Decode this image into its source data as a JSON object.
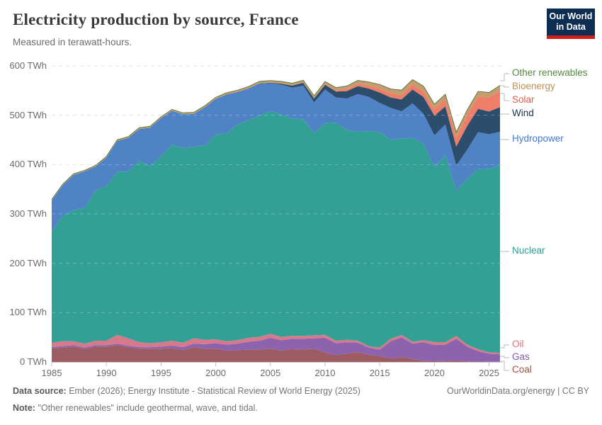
{
  "header": {
    "title": "Electricity production by source, France",
    "subtitle": "Measured in terawatt-hours."
  },
  "logo": {
    "line1": "Our World",
    "line2": "in Data"
  },
  "footer": {
    "source_label": "Data source:",
    "source_text": " Ember (2026); Energy Institute - Statistical Review of World Energy (2025)",
    "credit": "OurWorldinData.org/energy | CC BY",
    "note_label": "Note:",
    "note_text": " \"Other renewables\" include geothermal, wave, and tidal."
  },
  "chart_data": {
    "type": "area",
    "stacked": true,
    "title": "Electricity production by source, France",
    "subtitle": "Measured in terawatt-hours.",
    "xlabel": "",
    "ylabel": "",
    "ylim": [
      0,
      600
    ],
    "y_ticks": [
      0,
      100,
      200,
      300,
      400,
      500,
      600
    ],
    "y_tick_suffix": " TWh",
    "x_ticks": [
      1985,
      1990,
      1995,
      2000,
      2005,
      2010,
      2015,
      2020,
      2025
    ],
    "grid": "dashed-horizontal",
    "legend_position": "right",
    "x": [
      1985,
      1986,
      1987,
      1988,
      1989,
      1990,
      1991,
      1992,
      1993,
      1994,
      1995,
      1996,
      1997,
      1998,
      1999,
      2000,
      2001,
      2002,
      2003,
      2004,
      2005,
      2006,
      2007,
      2008,
      2009,
      2010,
      2011,
      2012,
      2013,
      2014,
      2015,
      2016,
      2017,
      2018,
      2019,
      2020,
      2021,
      2022,
      2023,
      2024,
      2025,
      2026
    ],
    "series": [
      {
        "name": "Coal",
        "color": "#9c5c62",
        "label_color": "#a84b3f",
        "values": [
          27,
          29,
          31,
          26,
          31,
          31,
          34,
          30,
          27,
          27,
          27,
          28,
          24,
          30,
          27,
          27,
          23,
          24,
          25,
          25,
          27,
          23,
          26,
          25,
          27,
          19,
          14,
          17,
          20,
          15,
          12,
          7,
          10,
          6,
          2,
          1.4,
          2,
          3,
          1,
          0.8,
          0.5,
          0.5
        ]
      },
      {
        "name": "Gas",
        "color": "#8d63ae",
        "label_color": "#8458a8",
        "values": [
          3,
          3,
          3,
          3,
          3,
          3,
          3,
          3,
          3,
          3,
          4,
          5,
          6,
          7,
          9,
          11,
          12,
          13,
          16,
          18,
          22,
          21,
          21,
          22,
          21,
          30,
          24,
          23,
          19,
          14,
          13,
          35,
          40,
          31,
          38,
          33,
          33,
          44,
          30,
          21,
          16,
          15
        ]
      },
      {
        "name": "Oil",
        "color": "#d6798a",
        "label_color": "#d8707d",
        "values": [
          9,
          10,
          8,
          8,
          9,
          9,
          18,
          15,
          10,
          8,
          9,
          10,
          9,
          11,
          9,
          8,
          7,
          7,
          8,
          8,
          8,
          7,
          6,
          6,
          6,
          6,
          5,
          5,
          4,
          3,
          4,
          5,
          5,
          4,
          4,
          6,
          5,
          6,
          4,
          4,
          3,
          3
        ]
      },
      {
        "name": "Nuclear",
        "color": "#33a096",
        "label_color": "#2d9c91",
        "values": [
          224,
          254,
          266,
          275,
          304,
          314,
          331,
          338,
          368,
          359,
          377,
          397,
          395,
          388,
          394,
          415,
          421,
          437,
          441,
          448,
          452,
          450,
          440,
          439,
          410,
          429,
          442,
          425,
          424,
          436,
          437,
          403,
          398,
          413,
          399,
          354,
          379,
          295,
          336,
          365,
          372,
          380
        ]
      },
      {
        "name": "Hydropower",
        "color": "#5082c6",
        "label_color": "#4378c9",
        "values": [
          64,
          62,
          71,
          74,
          49,
          57,
          62,
          68,
          64,
          78,
          77,
          69,
          68,
          67,
          77,
          72,
          79,
          66,
          64,
          65,
          56,
          61,
          63,
          68,
          62,
          68,
          51,
          64,
          76,
          69,
          59,
          65,
          55,
          70,
          60,
          65,
          62,
          50,
          59,
          75,
          70,
          68
        ]
      },
      {
        "name": "Wind",
        "color": "#2d4d6d",
        "label_color": "#16304f",
        "values": [
          0,
          0,
          0,
          0,
          0,
          0,
          0,
          0,
          0,
          0,
          0,
          0,
          0,
          0,
          0,
          0.1,
          0.1,
          0.3,
          0.4,
          0.6,
          1,
          2,
          4,
          5.7,
          7.9,
          9.9,
          12,
          14.9,
          16,
          17,
          21,
          21,
          24,
          28,
          34,
          39.7,
          36.8,
          38.5,
          48.6,
          47,
          46,
          50
        ]
      },
      {
        "name": "Solar",
        "color": "#ef7e69",
        "label_color": "#e05c49",
        "values": [
          0,
          0,
          0,
          0,
          0,
          0,
          0,
          0,
          0,
          0,
          0,
          0,
          0,
          0,
          0,
          0,
          0,
          0,
          0,
          0,
          0,
          0,
          0,
          0.1,
          0.2,
          0.6,
          2,
          4,
          4.6,
          5.9,
          7.7,
          8.2,
          9.2,
          10.2,
          11.6,
          12.6,
          14.3,
          18.6,
          21.6,
          25,
          28,
          33
        ]
      },
      {
        "name": "Bioenergy",
        "color": "#c69c6e",
        "label_color": "#c08f57",
        "values": [
          1.5,
          1.5,
          1.6,
          1.6,
          1.7,
          1.8,
          1.8,
          1.9,
          2,
          2,
          2.1,
          2.2,
          2.3,
          2.4,
          2.5,
          2.7,
          2.9,
          3,
          3.2,
          3.5,
          3.8,
          4,
          4.3,
          4.5,
          4.8,
          5.2,
          5.5,
          5.8,
          6.5,
          7,
          8,
          8.5,
          9,
          9.5,
          9.8,
          10,
          10,
          10,
          10,
          10,
          10,
          10.5
        ]
      },
      {
        "name": "Other renewables",
        "color": "#8aa865",
        "label_color": "#568546",
        "values": [
          0.5,
          0.5,
          0.5,
          0.5,
          0.5,
          0.5,
          0.5,
          0.5,
          0.5,
          0.5,
          0.5,
          0.5,
          0.5,
          0.5,
          0.5,
          0.5,
          0.5,
          0.5,
          0.5,
          0.5,
          0.5,
          0.5,
          0.5,
          0.5,
          0.5,
          0.5,
          0.5,
          0.5,
          0.5,
          0.5,
          0.5,
          0.5,
          0.5,
          0.5,
          0.5,
          0.5,
          0.5,
          0.5,
          0.5,
          0.5,
          0.5,
          0.5
        ]
      }
    ]
  }
}
